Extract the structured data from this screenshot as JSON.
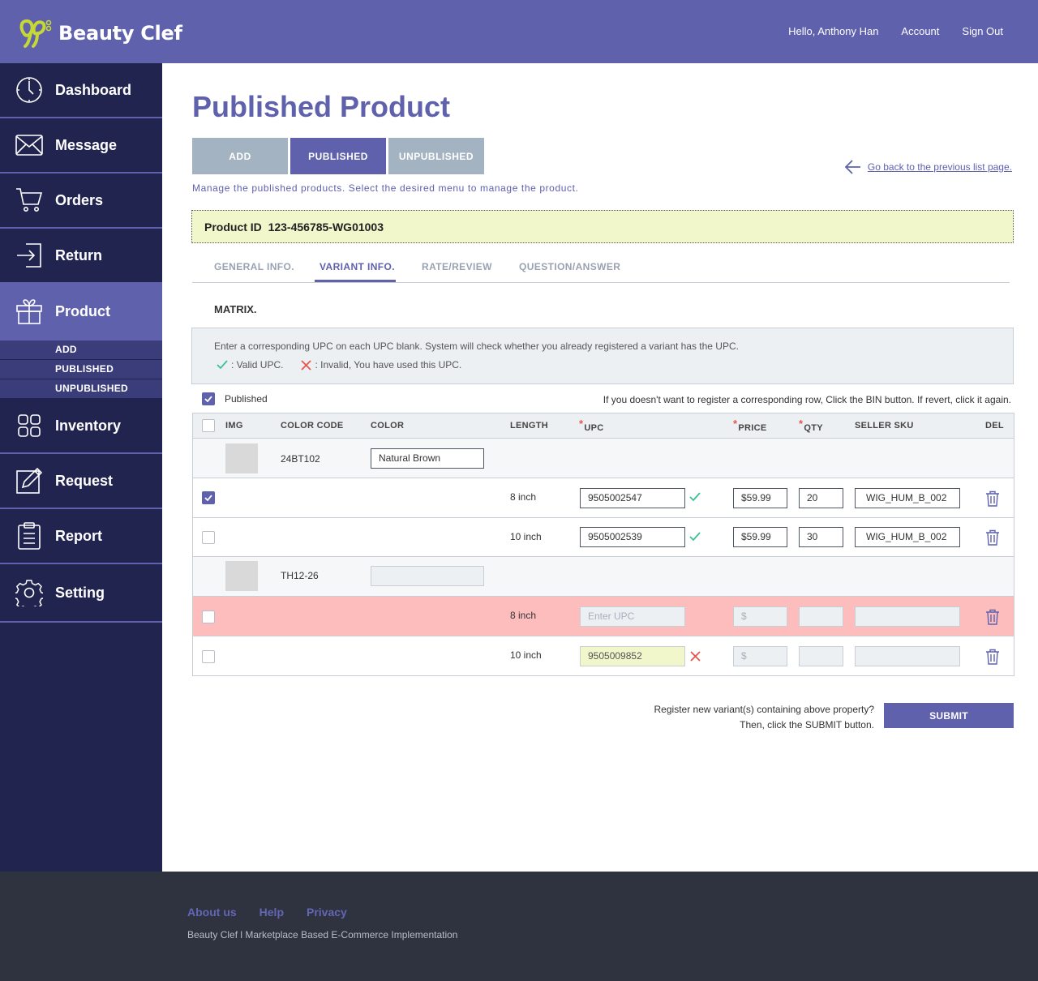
{
  "brand": {
    "name": "Beauty Clef"
  },
  "topnav": {
    "greeting": "Hello, Anthony Han",
    "account": "Account",
    "signout": "Sign Out"
  },
  "sidebar": {
    "items": [
      {
        "label": "Dashboard"
      },
      {
        "label": "Message"
      },
      {
        "label": "Orders"
      },
      {
        "label": "Return"
      },
      {
        "label": "Product"
      },
      {
        "label": "Inventory"
      },
      {
        "label": "Request"
      },
      {
        "label": "Report"
      },
      {
        "label": "Setting"
      }
    ],
    "product_sub": [
      "ADD",
      "PUBLISHED",
      "UNPUBLISHED"
    ]
  },
  "page": {
    "title": "Published Product",
    "buttons": [
      "ADD",
      "PUBLISHED",
      "UNPUBLISHED"
    ],
    "description": "Manage the published products. Select the desired menu to manage the product.",
    "back_link": "Go back to the previous list page.",
    "product_id_label": "Product ID",
    "product_id": "123-456785-WG01003"
  },
  "tabs": [
    "GENERAL INFO.",
    "VARIANT INFO.",
    "RATE/REVIEW",
    "QUESTION/ANSWER"
  ],
  "matrix": {
    "title": "MATRIX.",
    "info_line": "Enter a corresponding UPC on each UPC blank. System will check whether you already registered a variant has the UPC.",
    "valid_text": ": Valid UPC.",
    "invalid_text": ": Invalid, You have used this UPC.",
    "published_label": "Published",
    "hint": "If you doesn't want to register a corresponding row, Click the BIN button. If revert, click it again."
  },
  "table": {
    "headers": {
      "img": "IMG",
      "color_code": "COLOR CODE",
      "color": "COLOR",
      "length": "LENGTH",
      "upc": "UPC",
      "price": "PRICE",
      "qty": "QTY",
      "seller_sku": "SELLER SKU",
      "del": "DEL"
    },
    "groups": [
      {
        "color_code": "24BT102",
        "color": "Natural Brown",
        "variants": [
          {
            "length": "8 inch",
            "upc": "9505002547",
            "price": "$59.99",
            "qty": "20",
            "sku": "WIG_HUM_B_002",
            "checked": true,
            "status": "valid"
          },
          {
            "length": "10 inch",
            "upc": "9505002539",
            "price": "$59.99",
            "qty": "30",
            "sku": "WIG_HUM_B_002",
            "checked": false,
            "status": "valid"
          }
        ]
      },
      {
        "color_code": "TH12-26",
        "color": "",
        "variants": [
          {
            "length": "8 inch",
            "upc_placeholder": "Enter UPC",
            "price_placeholder": "$",
            "checked": false,
            "status": "excluded"
          },
          {
            "length": "10 inch",
            "upc": "9505009852",
            "price_placeholder": "$",
            "checked": false,
            "status": "invalid"
          }
        ]
      }
    ]
  },
  "submit": {
    "line1": "Register new variant(s) containing above property?",
    "line2": "Then, click the SUBMIT button.",
    "button": "SUBMIT"
  },
  "footer": {
    "links": [
      "About us",
      "Help",
      "Privacy"
    ],
    "copyright": "Beauty Clef l Marketplace Based E-Commerce Implementation"
  },
  "colors": {
    "primary": "#5f61ad",
    "sidebar": "#222450",
    "footer": "#2e333f",
    "valid": "#3cc08e",
    "invalid": "#e8554e",
    "error_row": "#fdbdbd",
    "highlight": "#f1f7cb"
  }
}
